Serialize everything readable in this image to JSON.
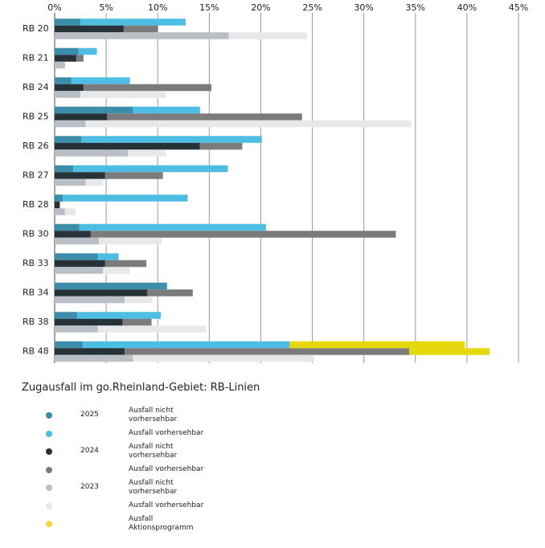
{
  "chart_data": {
    "type": "stacked-barh",
    "title": "Zugausfall im go.Rheinland-Gebiet: RB-Linien",
    "categories": [
      "RB 20",
      "RB 21",
      "RB 24",
      "RB 25",
      "RB 26",
      "RB 27",
      "RB 28",
      "RB 30",
      "RB 33",
      "RB 34",
      "RB 38",
      "RB 48"
    ],
    "groups": [
      "2025",
      "2024",
      "2023"
    ],
    "series": [
      {
        "name": "Ausfall nicht vorhersehbar",
        "group": 0,
        "color": "#3b8da9",
        "values": [
          2.5,
          2.3,
          1.6,
          7.6,
          2.6,
          1.8,
          0.8,
          2.4,
          4.2,
          10.9,
          2.2,
          2.7
        ]
      },
      {
        "name": "Ausfall vorhersehbar",
        "group": 0,
        "color": "#4dbde3",
        "values": [
          10.2,
          1.8,
          5.7,
          6.5,
          17.5,
          15.0,
          12.1,
          18.1,
          2.0,
          0,
          8.1,
          20.1
        ]
      },
      {
        "name": "Ausfall nicht vorhersehbar",
        "group": 1,
        "color": "#263238",
        "values": [
          6.7,
          2.1,
          2.8,
          5.1,
          14.1,
          4.9,
          0.5,
          3.5,
          4.9,
          9.0,
          6.6,
          6.8
        ]
      },
      {
        "name": "Ausfall vorhersehbar",
        "group": 1,
        "color": "#7b7b7b",
        "values": [
          3.3,
          0.7,
          12.4,
          18.9,
          4.1,
          5.6,
          0,
          29.6,
          4.0,
          4.4,
          2.8,
          27.6
        ]
      },
      {
        "name": "Ausfall nicht vorhersehbar",
        "group": 2,
        "color": "#babfc5",
        "values": [
          16.9,
          1.0,
          2.5,
          3.0,
          7.1,
          3.0,
          1.0,
          4.3,
          4.7,
          6.8,
          4.2,
          7.6
        ]
      },
      {
        "name": "Ausfall vorhersehbar",
        "group": 2,
        "color": "#e6e8ea",
        "values": [
          7.6,
          0,
          8.3,
          31.6,
          3.7,
          1.7,
          1.0,
          6.1,
          2.6,
          2.7,
          10.5,
          17.6
        ]
      },
      {
        "name": "Ausfall Aktionsprogramm",
        "groups": [
          0,
          1
        ],
        "color": "#e5d80a",
        "legend_color": "#f6d63c",
        "values": [
          null,
          null,
          null,
          null,
          null,
          null,
          null,
          null,
          null,
          null,
          null,
          [
            17.0,
            7.8
          ]
        ]
      }
    ],
    "xlim": [
      0,
      45
    ],
    "xticks": [
      {
        "value": 0,
        "label": "0%"
      },
      {
        "value": 5,
        "label": "5%"
      },
      {
        "value": 10,
        "label": "10%"
      },
      {
        "value": 15,
        "label": "15%"
      },
      {
        "value": 20,
        "label": "20%"
      },
      {
        "value": 25,
        "label": "25%"
      },
      {
        "value": 30,
        "label": "30%"
      },
      {
        "value": 35,
        "label": "35%"
      },
      {
        "value": 40,
        "label": "40%"
      },
      {
        "value": 45,
        "label": "45%"
      }
    ],
    "grid": true
  }
}
